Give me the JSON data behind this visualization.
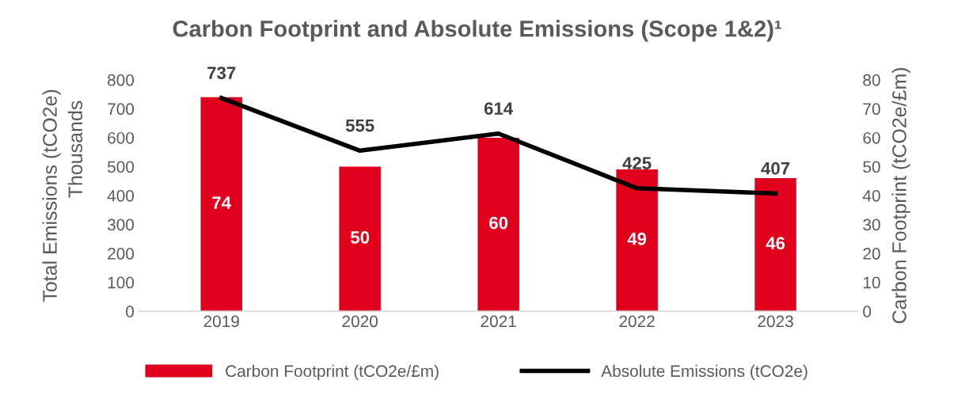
{
  "chart_data": {
    "type": "bar",
    "title": "Carbon Footprint and Absolute Emissions (Scope 1&2)¹",
    "ylabel": "Total Emissions (tCO2e)",
    "y2label": "Carbon Footprint (tCO2e/£m)",
    "annotations": [
      "Thousands"
    ],
    "categories": [
      "2019",
      "2020",
      "2021",
      "2022",
      "2023"
    ],
    "series": [
      {
        "name": "Carbon Footprint (tCO2e/£m)",
        "axis": "y2",
        "color": "#e0001b",
        "values": [
          74,
          50,
          60,
          49,
          46
        ]
      },
      {
        "name": "Absolute Emissions (tCO2e)",
        "type": "line",
        "axis": "y",
        "color": "#000000",
        "values": [
          737,
          555,
          614,
          425,
          407
        ]
      }
    ],
    "ylim": [
      0,
      800
    ],
    "yticks": [
      0,
      100,
      200,
      300,
      400,
      500,
      600,
      700,
      800
    ],
    "y2lim": [
      0,
      80
    ],
    "y2ticks": [
      0,
      10,
      20,
      30,
      40,
      50,
      60,
      70,
      80
    ],
    "data_labels": true,
    "grid": false,
    "legend": "bottom",
    "marker": "none",
    "line_style": "solid"
  }
}
